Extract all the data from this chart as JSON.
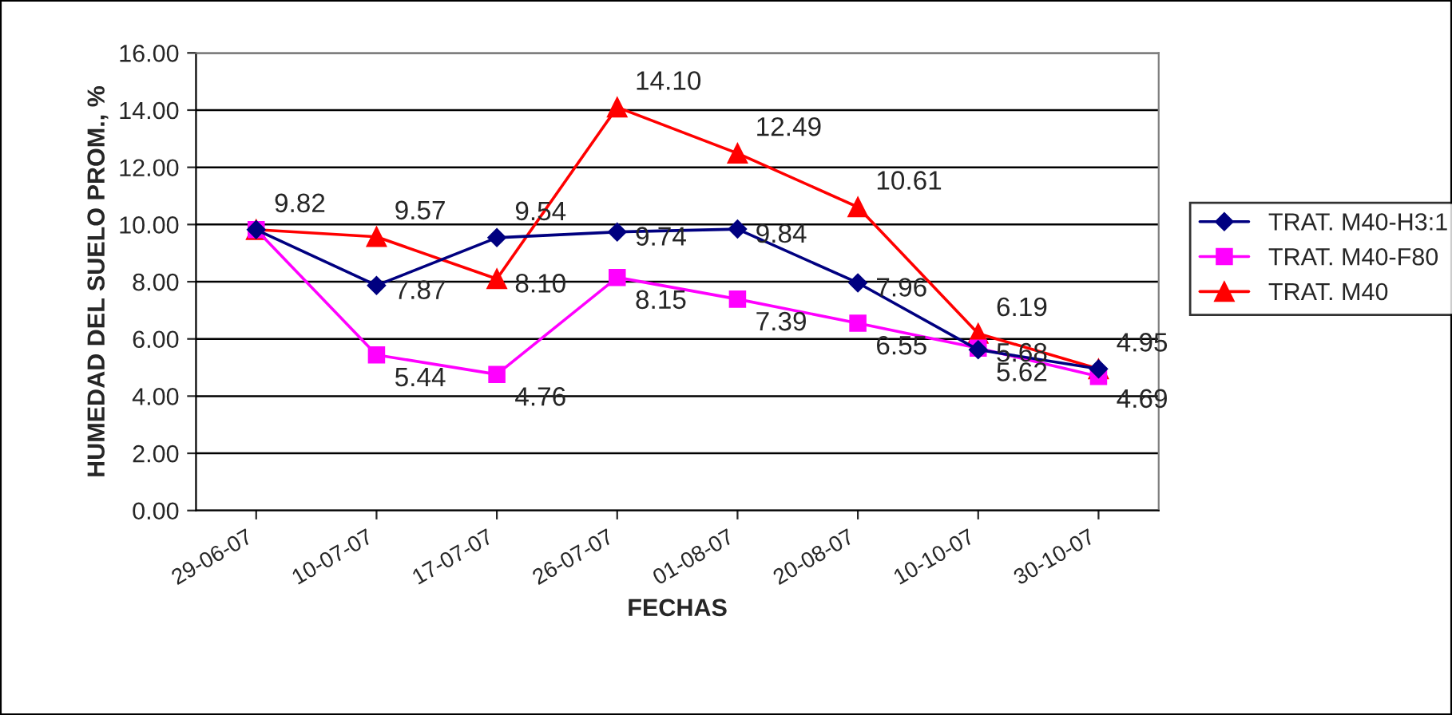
{
  "chart_data": {
    "type": "line",
    "xlabel": "FECHAS",
    "ylabel": "HUMEDAD DEL SUELO PROM., %",
    "categories": [
      "29-06-07",
      "10-07-07",
      "17-07-07",
      "26-07-07",
      "01-08-07",
      "20-08-07",
      "10-10-07",
      "30-10-07"
    ],
    "ylim": [
      0,
      16
    ],
    "yticks": [
      {
        "value": 0,
        "label": "0.00"
      },
      {
        "value": 2,
        "label": "2.00"
      },
      {
        "value": 4,
        "label": "4.00"
      },
      {
        "value": 6,
        "label": "6.00"
      },
      {
        "value": 8,
        "label": "8.00"
      },
      {
        "value": 10,
        "label": "10.00"
      },
      {
        "value": 12,
        "label": "12.00"
      },
      {
        "value": 14,
        "label": "14.00"
      },
      {
        "value": 16,
        "label": "16.00"
      }
    ],
    "grid": "y",
    "legend": "right",
    "line_style": "solid",
    "series": [
      {
        "name": "TRAT. M40-H3:1",
        "color": "#000080",
        "marker": "diamond",
        "values": [
          9.82,
          7.87,
          9.54,
          9.74,
          9.84,
          7.96,
          5.62,
          4.95
        ],
        "value_labels": [
          "9.82",
          "7.87",
          "9.54",
          "9.74",
          "9.84",
          "7.96",
          "5.62",
          "4.95"
        ]
      },
      {
        "name": "TRAT. M40-F80",
        "color": "#ff00ff",
        "marker": "square",
        "values": [
          9.82,
          5.44,
          4.76,
          8.15,
          7.39,
          6.55,
          5.68,
          4.69
        ],
        "value_labels": [
          null,
          "5.44",
          "4.76",
          "8.15",
          "7.39",
          "6.55",
          "5.68",
          "4.69"
        ]
      },
      {
        "name": "TRAT. M40",
        "color": "#ff0000",
        "marker": "triangle",
        "values": [
          9.82,
          9.57,
          8.1,
          14.1,
          12.49,
          10.61,
          6.19,
          4.95
        ],
        "value_labels": [
          null,
          "9.57",
          "8.10",
          "14.10",
          "12.49",
          "10.61",
          "6.19",
          null
        ]
      }
    ]
  }
}
